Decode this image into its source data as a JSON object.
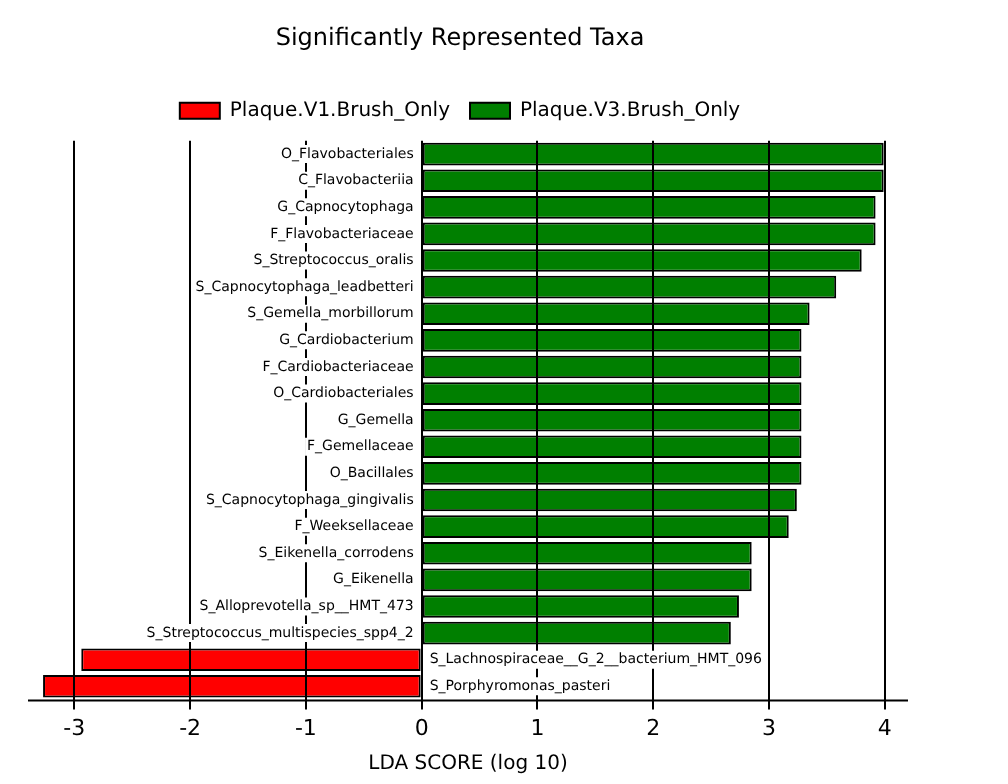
{
  "chart_data": {
    "type": "bar",
    "orientation": "horizontal",
    "title": "Significantly Represented Taxa",
    "xlabel": "LDA SCORE (log 10)",
    "categories": [
      "O_Flavobacteriales",
      "C_Flavobacteriia",
      "G_Capnocytophaga",
      "F_Flavobacteriaceae",
      "S_Streptococcus_oralis",
      "S_Capnocytophaga_leadbetteri",
      "S_Gemella_morbillorum",
      "G_Cardiobacterium",
      "F_Cardiobacteriaceae",
      "O_Cardiobacteriales",
      "G_Gemella",
      "F_Gemellaceae",
      "O_Bacillales",
      "S_Capnocytophaga_gingivalis",
      "F_Weeksellaceae",
      "S_Eikenella_corrodens",
      "G_Eikenella",
      "S_Alloprevotella_sp__HMT_473",
      "S_Streptococcus_multispecies_spp4_2",
      "S_Lachnospiraceae__G_2__bacterium_HMT_096",
      "S_Porphyromonas_pasteri"
    ],
    "series": [
      {
        "name": "Plaque.V1.Brush_Only",
        "color": "#ff0000",
        "values": [
          null,
          null,
          null,
          null,
          null,
          null,
          null,
          null,
          null,
          null,
          null,
          null,
          null,
          null,
          null,
          null,
          null,
          null,
          null,
          -2.94,
          -3.27
        ]
      },
      {
        "name": "Plaque.V3.Brush_Only",
        "color": "#007f00",
        "values": [
          3.99,
          3.99,
          3.92,
          3.92,
          3.8,
          3.58,
          3.35,
          3.28,
          3.28,
          3.28,
          3.28,
          3.28,
          3.28,
          3.24,
          3.17,
          2.85,
          2.85,
          2.74,
          2.67,
          null,
          null
        ]
      }
    ],
    "xlim": [
      -3.4,
      4.2
    ],
    "xticks": [
      -3,
      -2,
      -1,
      0,
      1,
      2,
      3,
      4
    ],
    "grid": "x",
    "legend": "top",
    "tick_labels": "x"
  }
}
